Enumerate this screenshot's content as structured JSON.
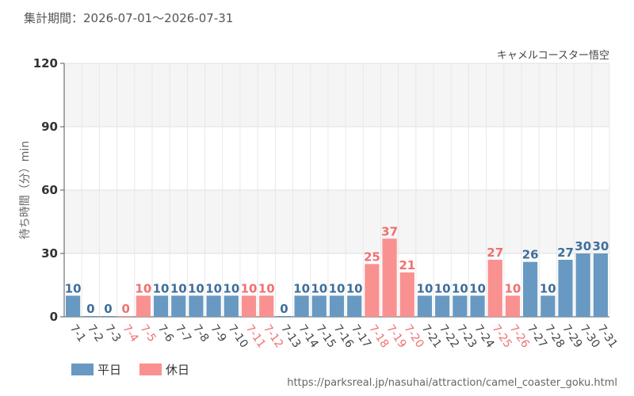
{
  "header": {
    "period_label": "集計期間：2026-07-01～2026-07-31"
  },
  "chart_data": {
    "type": "bar",
    "title": "キャメルコースター悟空",
    "ylabel": "待ち時間（分）min",
    "ylim": [
      0,
      120
    ],
    "yticks": [
      0,
      30,
      60,
      90,
      120
    ],
    "grid": true,
    "categories": [
      "7-1",
      "7-2",
      "7-3",
      "7-4",
      "7-5",
      "7-6",
      "7-7",
      "7-8",
      "7-9",
      "7-10",
      "7-11",
      "7-12",
      "7-13",
      "7-14",
      "7-15",
      "7-16",
      "7-17",
      "7-18",
      "7-19",
      "7-20",
      "7-21",
      "7-22",
      "7-23",
      "7-24",
      "7-25",
      "7-26",
      "7-27",
      "7-28",
      "7-29",
      "7-30",
      "7-31"
    ],
    "values": [
      10,
      0,
      0,
      0,
      10,
      10,
      10,
      10,
      10,
      10,
      10,
      10,
      0,
      10,
      10,
      10,
      10,
      25,
      37,
      21,
      10,
      10,
      10,
      10,
      27,
      10,
      26,
      10,
      27,
      30,
      30
    ],
    "day_type": [
      "weekday",
      "weekday",
      "weekday",
      "holiday",
      "holiday",
      "weekday",
      "weekday",
      "weekday",
      "weekday",
      "weekday",
      "holiday",
      "holiday",
      "weekday",
      "weekday",
      "weekday",
      "weekday",
      "weekday",
      "holiday",
      "holiday",
      "holiday",
      "weekday",
      "weekday",
      "weekday",
      "weekday",
      "holiday",
      "holiday",
      "weekday",
      "weekday",
      "weekday",
      "weekday",
      "weekday"
    ],
    "legend": {
      "position": "bottom-left",
      "weekday": "平日",
      "holiday": "休日"
    },
    "colors": {
      "weekday_bar": "#6899c2",
      "holiday_bar": "#f99191",
      "weekday_text": "#3f6e9c",
      "holiday_text": "#f07070",
      "weekday_tick": "#444444",
      "holiday_tick": "#f07070"
    }
  },
  "footer": {
    "source": "https://parksreal.jp/nasuhai/attraction/camel_coaster_goku.html"
  }
}
